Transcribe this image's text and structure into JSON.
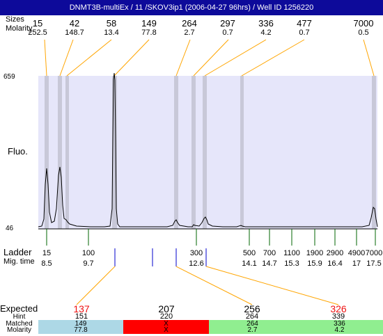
{
  "title": "DNMT3B-multiEx / 11  /SKOV3ip1 (2006-04-27 96hrs) / Well ID 1256220",
  "top_labels": {
    "sizes": "Sizes",
    "molarity": "Molarity"
  },
  "top_peaks": [
    {
      "size": "15",
      "molarity": "252.5"
    },
    {
      "size": "42",
      "molarity": "148.7"
    },
    {
      "size": "58",
      "molarity": "13.4"
    },
    {
      "size": "149",
      "molarity": "77.8"
    },
    {
      "size": "264",
      "molarity": "2.7"
    },
    {
      "size": "297",
      "molarity": "0.7"
    },
    {
      "size": "336",
      "molarity": "4.2"
    },
    {
      "size": "477",
      "molarity": "0.7"
    },
    {
      "size": "7000",
      "molarity": "0.5"
    }
  ],
  "axis": {
    "y_top": "659",
    "y_bottom": "46",
    "ylabel": "Fluo."
  },
  "ladder": {
    "label": "Ladder",
    "time_label": "Mig. time",
    "items": [
      {
        "size": "15",
        "time": "8.5"
      },
      {
        "size": "100",
        "time": "9.7"
      },
      {
        "size": "300",
        "time": "12.6"
      },
      {
        "size": "500",
        "time": "14.1"
      },
      {
        "size": "700",
        "time": "14.7"
      },
      {
        "size": "1100",
        "time": "15.3"
      },
      {
        "size": "1900",
        "time": "15.9"
      },
      {
        "size": "2900",
        "time": "16.4"
      },
      {
        "size": "4900",
        "time": "17"
      },
      {
        "size": "7000",
        "time": "17.5"
      }
    ]
  },
  "table": {
    "labels": {
      "expected": "Expected",
      "hint": "Hint",
      "matched": "Matched",
      "molarity": "Molarity"
    },
    "columns": [
      {
        "expected": "137",
        "expected_color": "#ee1111",
        "hint": "151",
        "matched": "149",
        "molarity": "77.8",
        "bg": "#add8e6"
      },
      {
        "expected": "207",
        "expected_color": "#000000",
        "hint": "220",
        "matched": "X",
        "molarity": "X",
        "bg": "#ff0000"
      },
      {
        "expected": "256",
        "expected_color": "#000000",
        "hint": "264",
        "matched": "264",
        "molarity": "2.7",
        "bg": "#90ee90"
      },
      {
        "expected": "326",
        "expected_color": "#ee1111",
        "hint": "339",
        "matched": "336",
        "molarity": "4.2",
        "bg": "#90ee90"
      }
    ]
  },
  "colors": {
    "title_bg": "#0d0a9a",
    "plot_bg": "#e6e6fa",
    "band": "#c8c8d8",
    "orange": "#ffa500",
    "ladder_tick": "#006400",
    "marker": "#0000cc"
  }
}
